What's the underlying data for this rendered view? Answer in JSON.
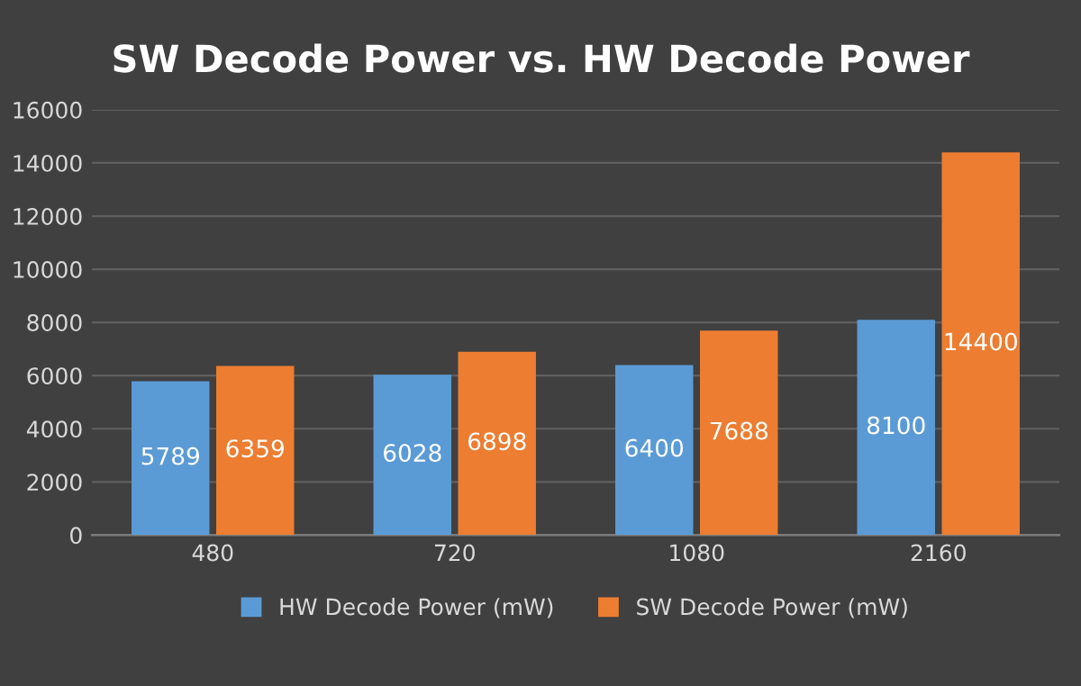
{
  "chart_data": {
    "type": "bar",
    "title": "SW Decode Power vs. HW Decode Power",
    "categories": [
      "480",
      "720",
      "1080",
      "2160"
    ],
    "series": [
      {
        "name": "HW Decode Power (mW)",
        "color": "#5b9bd5",
        "values": [
          5789,
          6028,
          6400,
          8100
        ]
      },
      {
        "name": "SW Decode Power (mW)",
        "color": "#ed7d31",
        "values": [
          6359,
          6898,
          7688,
          14400
        ]
      }
    ],
    "ylim": [
      0,
      16000
    ],
    "yticks": [
      0,
      2000,
      4000,
      6000,
      8000,
      10000,
      12000,
      14000,
      16000
    ],
    "grid": "y",
    "legend": "bottom",
    "data_labels": true
  }
}
